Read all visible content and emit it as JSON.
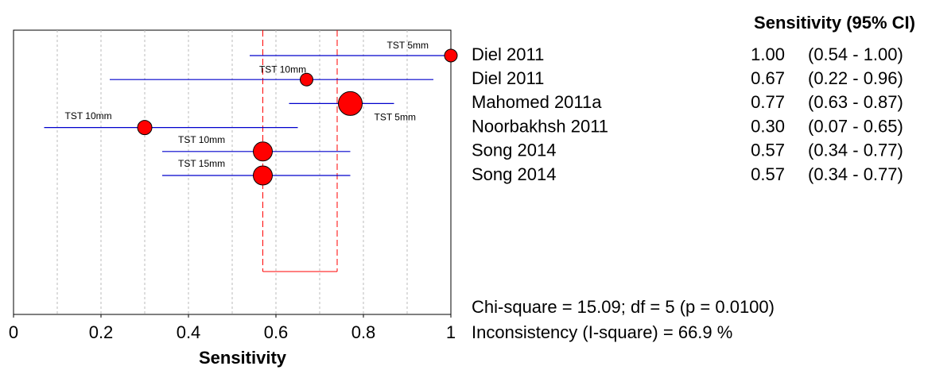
{
  "chart_data": {
    "type": "forest",
    "column_title": "Sensitivity (95% CI)",
    "xlabel": "Sensitivity",
    "categories": [
      "Diel 2011",
      "Diel 2011",
      "Mahomed 2011a",
      "Noorbakhsh 2011",
      "Song 2014",
      "Song 2014"
    ],
    "values": [
      1,
      0.67,
      0.77,
      0.3,
      0.57,
      0.57
    ],
    "value_labels": [
      "1.00",
      "0.67",
      "0.77",
      "0.30",
      "0.57",
      "0.57"
    ],
    "ci_lower": [
      0.54,
      0.22,
      0.63,
      0.07,
      0.34,
      0.34
    ],
    "ci_upper": [
      1,
      0.96,
      0.87,
      0.65,
      0.77,
      0.77
    ],
    "ci_labels": [
      "(0.54 - 1.00)",
      "(0.22 - 0.96)",
      "(0.63 - 0.87)",
      "(0.07 - 0.65)",
      "(0.34 - 0.77)",
      "(0.34 - 0.77)"
    ],
    "annotations": [
      "TST 5mm",
      "TST 10mm",
      "TST 5mm",
      "TST 10mm",
      "TST 10mm",
      "TST 15mm"
    ],
    "marker_sizes": [
      8,
      8,
      15,
      9,
      12,
      12
    ],
    "pooled_ci": [
      0.57,
      0.74
    ],
    "xlim": [
      0,
      1
    ],
    "xticks": [
      0,
      0.2,
      0.4,
      0.6,
      0.8,
      1
    ],
    "gridlines": [
      0.1,
      0.2,
      0.3,
      0.4,
      0.5,
      0.6,
      0.7,
      0.8,
      0.9
    ],
    "marker_color": "#ff0000",
    "ci_color": "#0000cc",
    "pooled_color": "#ff0000",
    "statistics": [
      "Chi-square = 15.09; df =  5 (p = 0.0100)",
      "Inconsistency (I-square) = 66.9 %"
    ]
  }
}
